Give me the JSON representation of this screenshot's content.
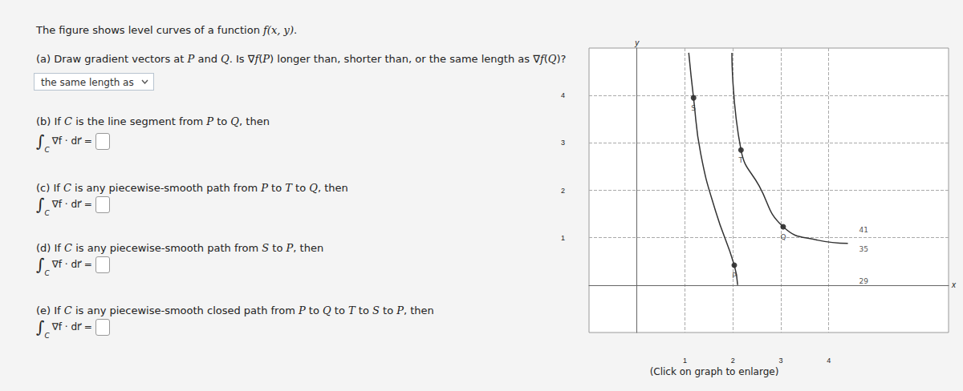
{
  "intro": [
    {
      "t": "The figure shows level curves of a function "
    },
    {
      "t": "f(x, y)",
      "i": true
    },
    {
      "t": "."
    }
  ],
  "questions": [
    {
      "id": "a",
      "text": [
        {
          "t": "(a) Draw gradient vectors at "
        },
        {
          "t": "P",
          "i": true
        },
        {
          "t": " and "
        },
        {
          "t": "Q",
          "i": true
        },
        {
          "t": ". Is ∇"
        },
        {
          "t": "f",
          "i": true
        },
        {
          "t": "("
        },
        {
          "t": "P",
          "i": true
        },
        {
          "t": ") longer than, shorter than, or the same length as ∇"
        },
        {
          "t": "f",
          "i": true
        },
        {
          "t": "("
        },
        {
          "t": "Q",
          "i": true
        },
        {
          "t": ")?"
        }
      ],
      "dropdown": "the same length as"
    },
    {
      "id": "b",
      "text": [
        {
          "t": "(b) If "
        },
        {
          "t": "C",
          "i": true
        },
        {
          "t": " is the line segment from "
        },
        {
          "t": "P",
          "i": true
        },
        {
          "t": " to "
        },
        {
          "t": "Q",
          "i": true
        },
        {
          "t": ", then"
        }
      ]
    },
    {
      "id": "c",
      "text": [
        {
          "t": "(c) If "
        },
        {
          "t": "C",
          "i": true
        },
        {
          "t": " is any piecewise-smooth path from "
        },
        {
          "t": "P",
          "i": true
        },
        {
          "t": " to "
        },
        {
          "t": "T",
          "i": true
        },
        {
          "t": " to "
        },
        {
          "t": "Q",
          "i": true
        },
        {
          "t": ", then"
        }
      ]
    },
    {
      "id": "d",
      "text": [
        {
          "t": "(d) If "
        },
        {
          "t": "C",
          "i": true
        },
        {
          "t": " is any piecewise-smooth path from "
        },
        {
          "t": "S",
          "i": true
        },
        {
          "t": " to "
        },
        {
          "t": "P",
          "i": true
        },
        {
          "t": ", then"
        }
      ]
    },
    {
      "id": "e",
      "text": [
        {
          "t": "(e) If "
        },
        {
          "t": "C",
          "i": true
        },
        {
          "t": " is any piecewise-smooth closed path from "
        },
        {
          "t": "P",
          "i": true
        },
        {
          "t": " to "
        },
        {
          "t": "Q",
          "i": true
        },
        {
          "t": " to "
        },
        {
          "t": "T",
          "i": true
        },
        {
          "t": " to "
        },
        {
          "t": "S",
          "i": true
        },
        {
          "t": " to "
        },
        {
          "t": "P",
          "i": true
        },
        {
          "t": ", then"
        }
      ]
    }
  ],
  "integral": {
    "symbol": "∫",
    "subscript": "C",
    "integrand": "∇f · dr⃗ ="
  },
  "chart_data": {
    "type": "contour",
    "xlim": [
      -1,
      6.5
    ],
    "ylim": [
      -1,
      5
    ],
    "xticks": [
      1,
      2,
      3,
      4
    ],
    "yticks": [
      1,
      2,
      3,
      4
    ],
    "x_label": "x",
    "y_label": "y",
    "grid": true,
    "series": [
      {
        "color": "#333333",
        "values": [
          [
            1.08,
            4.9
          ],
          [
            1.18,
            3.95
          ],
          [
            1.33,
            2.77
          ],
          [
            1.64,
            1.56
          ],
          [
            2.03,
            0.42
          ],
          [
            2.1,
            0
          ]
        ]
      },
      {
        "color": "#333333",
        "values": [
          [
            1.98,
            4.9
          ],
          [
            2.17,
            2.85
          ],
          [
            2.55,
            2.09
          ],
          [
            3.05,
            1.23
          ],
          [
            3.76,
            0.95
          ],
          [
            4.4,
            0.88
          ]
        ]
      }
    ],
    "points": [
      {
        "label": "S",
        "x": 1.18,
        "y": 3.95
      },
      {
        "label": "T",
        "x": 2.17,
        "y": 2.85
      },
      {
        "label": "Q",
        "x": 3.05,
        "y": 1.23
      },
      {
        "label": "P",
        "x": 2.03,
        "y": 0.42
      }
    ],
    "levels": [
      {
        "value": 41,
        "x": 4.55,
        "y": 1.17
      },
      {
        "value": 35,
        "x": 4.55,
        "y": 0.76
      },
      {
        "value": 29,
        "x": 4.55,
        "y": 0.08
      }
    ],
    "caption": "(Click on graph to enlarge)"
  }
}
